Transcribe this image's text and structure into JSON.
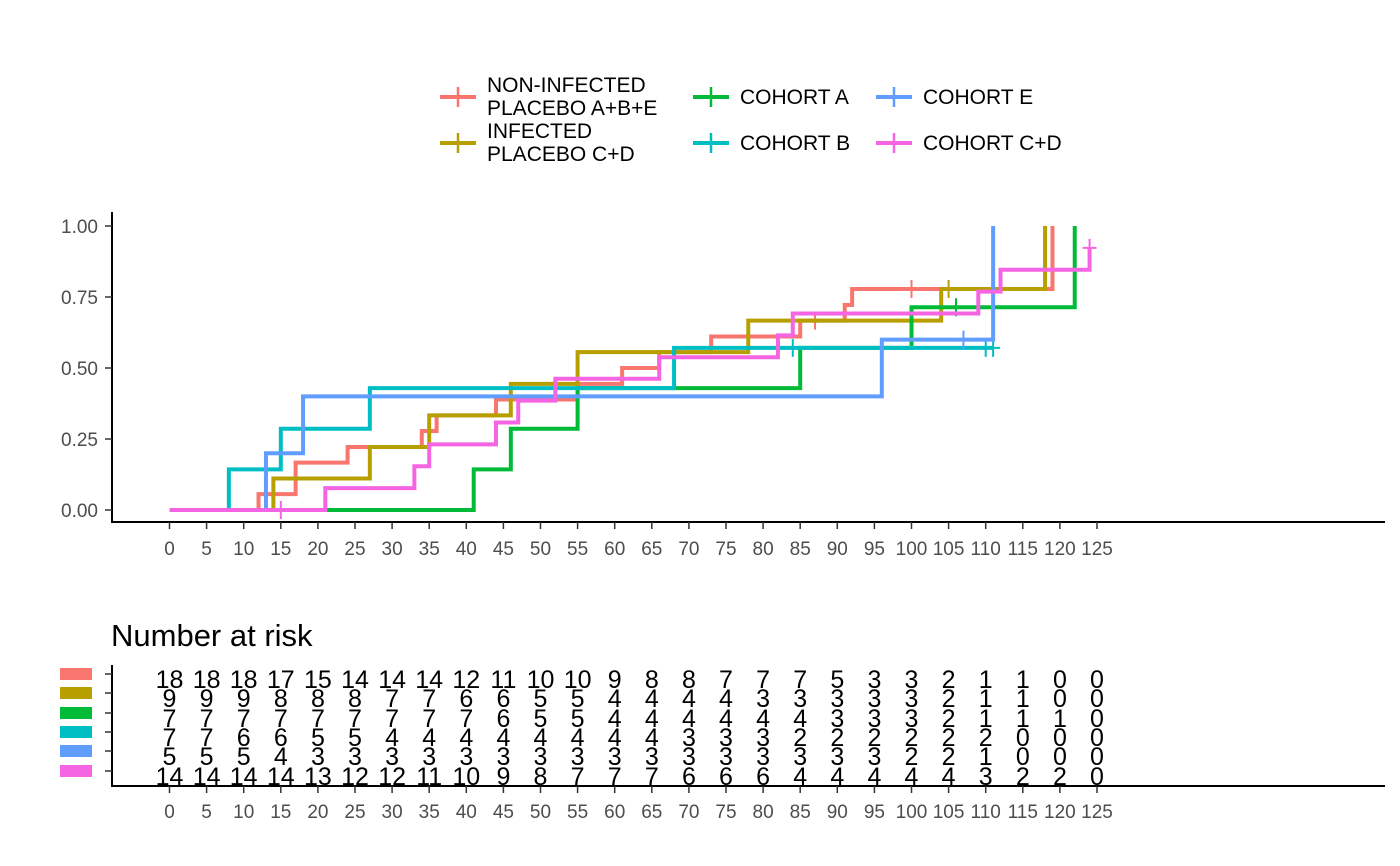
{
  "chart_data": [
    {
      "type": "line",
      "title": "",
      "xlabel": "",
      "ylabel": "",
      "xlim": [
        0,
        125
      ],
      "ylim": [
        0,
        1
      ],
      "x_ticks": [
        0,
        5,
        10,
        15,
        20,
        25,
        30,
        35,
        40,
        45,
        50,
        55,
        60,
        65,
        70,
        75,
        80,
        85,
        90,
        95,
        100,
        105,
        110,
        115,
        120,
        125
      ],
      "y_ticks": [
        "0.00",
        "0.25",
        "0.50",
        "0.75",
        "1.00"
      ],
      "grid": false,
      "legend_position": "top",
      "series": [
        {
          "name": "NON-INFECTED\nPLACEBO A+B+E",
          "color": "#F8766D",
          "steps": [
            [
              0,
              0
            ],
            [
              12,
              0.056
            ],
            [
              17,
              0.167
            ],
            [
              24,
              0.222
            ],
            [
              34,
              0.278
            ],
            [
              36,
              0.333
            ],
            [
              44,
              0.389
            ],
            [
              55,
              0.444
            ],
            [
              61,
              0.5
            ],
            [
              66,
              0.556
            ],
            [
              73,
              0.611
            ],
            [
              85,
              0.667
            ],
            [
              91,
              0.722
            ],
            [
              92,
              0.778
            ],
            [
              119,
              1
            ]
          ],
          "censored": [
            [
              87,
              0.667
            ],
            [
              100,
              0.778
            ]
          ]
        },
        {
          "name": "INFECTED\nPLACEBO C+D",
          "color": "#B79F00",
          "steps": [
            [
              0,
              0
            ],
            [
              14,
              0.111
            ],
            [
              27,
              0.222
            ],
            [
              35,
              0.333
            ],
            [
              46,
              0.444
            ],
            [
              55,
              0.556
            ],
            [
              78,
              0.667
            ],
            [
              104,
              0.778
            ],
            [
              118,
              1
            ]
          ],
          "censored": [
            [
              105,
              0.778
            ]
          ]
        },
        {
          "name": "COHORT A",
          "color": "#00BA38",
          "steps": [
            [
              0,
              0
            ],
            [
              41,
              0.143
            ],
            [
              46,
              0.286
            ],
            [
              55,
              0.429
            ],
            [
              85,
              0.571
            ],
            [
              100,
              0.714
            ],
            [
              122,
              1
            ]
          ],
          "censored": [
            [
              106,
              0.714
            ]
          ]
        },
        {
          "name": "COHORT B",
          "color": "#00BFC4",
          "steps": [
            [
              0,
              0
            ],
            [
              8,
              0.143
            ],
            [
              15,
              0.286
            ],
            [
              27,
              0.429
            ],
            [
              68,
              0.571
            ]
          ],
          "end_x": 111,
          "censored": [
            [
              84,
              0.571
            ],
            [
              110,
              0.571
            ],
            [
              111,
              0.571
            ]
          ]
        },
        {
          "name": "COHORT E",
          "color": "#619CFF",
          "steps": [
            [
              0,
              0
            ],
            [
              13,
              0.2
            ],
            [
              18,
              0.4
            ],
            [
              96,
              0.6
            ],
            [
              111,
              1
            ]
          ],
          "censored": [
            [
              107,
              0.6
            ]
          ]
        },
        {
          "name": "COHORT C+D",
          "color": "#F564E3",
          "steps": [
            [
              0,
              0
            ],
            [
              21,
              0.077
            ],
            [
              33,
              0.154
            ],
            [
              35,
              0.231
            ],
            [
              44,
              0.308
            ],
            [
              47,
              0.385
            ],
            [
              52,
              0.462
            ],
            [
              66,
              0.538
            ],
            [
              82,
              0.615
            ],
            [
              84,
              0.692
            ],
            [
              109,
              0.769
            ],
            [
              112,
              0.846
            ],
            [
              124,
              0.923
            ]
          ],
          "censored": [
            [
              15,
              0
            ],
            [
              124,
              0.923
            ]
          ]
        }
      ]
    },
    {
      "type": "table",
      "title": "Number at risk",
      "x_ticks": [
        0,
        5,
        10,
        15,
        20,
        25,
        30,
        35,
        40,
        45,
        50,
        55,
        60,
        65,
        70,
        75,
        80,
        85,
        90,
        95,
        100,
        105,
        110,
        115,
        120,
        125
      ],
      "colors": [
        "#F8766D",
        "#B79F00",
        "#00BA38",
        "#00BFC4",
        "#619CFF",
        "#F564E3"
      ],
      "rows": [
        [
          "18",
          "18",
          "18",
          "17",
          "15",
          "14",
          "14",
          "14",
          "12",
          "11",
          "10",
          "10",
          "9",
          "8",
          "8",
          "7",
          "7",
          "7",
          "5",
          "3",
          "3",
          "2",
          "1",
          "1",
          "0",
          "0"
        ],
        [
          "9",
          "9",
          "9",
          "8",
          "8",
          "8",
          "7",
          "7",
          "6",
          "6",
          "5",
          "5",
          "4",
          "4",
          "4",
          "4",
          "3",
          "3",
          "3",
          "3",
          "3",
          "2",
          "1",
          "1",
          "0",
          "0"
        ],
        [
          "7",
          "7",
          "7",
          "7",
          "7",
          "7",
          "7",
          "7",
          "7",
          "6",
          "5",
          "5",
          "4",
          "4",
          "4",
          "4",
          "4",
          "4",
          "3",
          "3",
          "3",
          "2",
          "1",
          "1",
          "1",
          "0"
        ],
        [
          "7",
          "7",
          "6",
          "6",
          "5",
          "5",
          "4",
          "4",
          "4",
          "4",
          "4",
          "4",
          "4",
          "4",
          "3",
          "3",
          "3",
          "2",
          "2",
          "2",
          "2",
          "2",
          "2",
          "0",
          "0",
          "0"
        ],
        [
          "5",
          "5",
          "5",
          "4",
          "3",
          "3",
          "3",
          "3",
          "3",
          "3",
          "3",
          "3",
          "3",
          "3",
          "3",
          "3",
          "3",
          "3",
          "3",
          "3",
          "2",
          "2",
          "1",
          "0",
          "0",
          "0"
        ],
        [
          "14",
          "14",
          "14",
          "14",
          "13",
          "12",
          "12",
          "11",
          "10",
          "9",
          "8",
          "7",
          "7",
          "7",
          "6",
          "6",
          "6",
          "4",
          "4",
          "4",
          "4",
          "4",
          "3",
          "2",
          "2",
          "0"
        ]
      ]
    }
  ]
}
